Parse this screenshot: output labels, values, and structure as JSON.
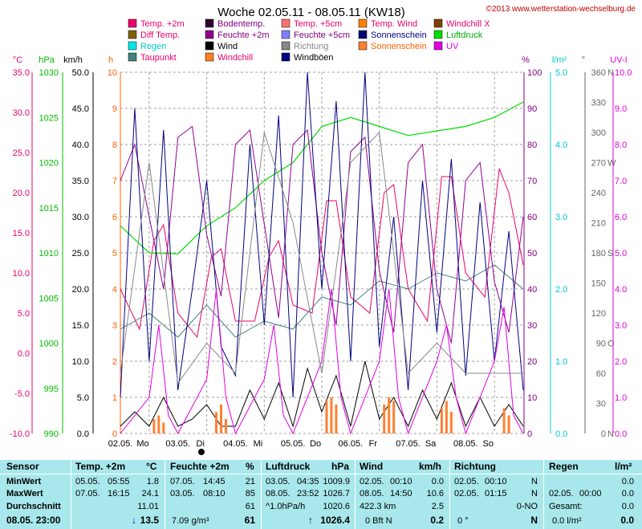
{
  "title": "Woche 02.05.11 - 08.05.11 (KW18)",
  "copyright": "©2013 www.wetterstation-wechselburg.de",
  "colors": {
    "temp2m": "#e8006a",
    "diff": "#806000",
    "regen": "#00e8e8",
    "taupunkt": "#408080",
    "boden": "#300030",
    "feuchte2m": "#900090",
    "wind": "#000000",
    "windchill": "#ff8020",
    "temp5cm": "#ff7070",
    "feuchte5cm": "#8080ff",
    "richtung": "#888888",
    "windboeen": "#000080",
    "tempwind": "#ff8000",
    "sonnenschein": "#000070",
    "sonnenschein_bar": "#ff8030",
    "windchillx": "#804000",
    "luftdruck": "#00dd00",
    "uv": "#e000e0",
    "grid": "#a0a0a0"
  },
  "legend": [
    {
      "label": "Temp. +2m",
      "color": "#e8006a",
      "text_color": "#e8006a"
    },
    {
      "label": "Bodentemp.",
      "color": "#300030",
      "text_color": "#800080"
    },
    {
      "label": "Temp. +5cm",
      "color": "#ff7070",
      "text_color": "#e8006a"
    },
    {
      "label": "Temp. Wind",
      "color": "#ff8000",
      "text_color": "#e8006a"
    },
    {
      "label": "Windchill X",
      "color": "#804000",
      "text_color": "#e8006a"
    },
    {
      "label": "Diff Temp.",
      "color": "#806000",
      "text_color": "#e8006a"
    },
    {
      "label": "Feuchte +2m",
      "color": "#900090",
      "text_color": "#800080"
    },
    {
      "label": "Feuchte +5cm",
      "color": "#8080ff",
      "text_color": "#800080"
    },
    {
      "label": "Sonnenschein",
      "color": "#000070",
      "text_color": "#000080"
    },
    {
      "label": "Luftdruck",
      "color": "#00dd00",
      "text_color": "#00aa00"
    },
    {
      "label": "Regen",
      "color": "#00e8e8",
      "text_color": "#00c8c8"
    },
    {
      "label": "Wind",
      "color": "#000000",
      "text_color": "#000000"
    },
    {
      "label": "Richtung",
      "color": "#888888",
      "text_color": "#888888"
    },
    {
      "label": "Sonnenschein",
      "color": "#ff8030",
      "text_color": "#ff6000"
    },
    {
      "label": "UV",
      "color": "#e000e0",
      "text_color": "#e000e0"
    },
    {
      "label": "Taupunkt",
      "color": "#408080",
      "text_color": "#e8006a"
    },
    {
      "label": "Windchill",
      "color": "#ff8020",
      "text_color": "#e8006a"
    },
    {
      "label": "Windböen",
      "color": "#000080",
      "text_color": "#000000"
    }
  ],
  "chart_data": {
    "type": "line",
    "title": "Woche 02.05.11 - 08.05.11 (KW18)",
    "x_ticks": [
      "02.05.",
      "03.05.",
      "04.05.",
      "05.05.",
      "06.05.",
      "07.05.",
      "08.05."
    ],
    "x_tick_days": [
      "Mo",
      "Di",
      "Mi",
      "Do",
      "Fr",
      "Sa",
      "So"
    ],
    "x_range_hours": [
      0,
      168
    ],
    "axes": [
      {
        "unit": "°C",
        "ticks": [
          "35.0",
          "30.0",
          "25.0",
          "20.0",
          "15.0",
          "10.0",
          "5.0",
          "0.0",
          "-5.0",
          "-10.0"
        ],
        "range": [
          -10,
          35
        ],
        "color": "#e8006a"
      },
      {
        "unit": "hPa",
        "ticks": [
          "1030",
          "1025",
          "1020",
          "1015",
          "1010",
          "1005",
          "1000",
          "995",
          "990"
        ],
        "range": [
          990,
          1030
        ],
        "color": "#00bb00"
      },
      {
        "unit": "km/h",
        "ticks": [
          "50.0",
          "45.0",
          "40.0",
          "35.0",
          "30.0",
          "25.0",
          "20.0",
          "15.0",
          "10.0",
          "5.0",
          "0.0"
        ],
        "range": [
          0,
          50
        ],
        "color": "#000000"
      },
      {
        "unit": "h",
        "ticks": [
          "10",
          "9",
          "8",
          "7",
          "6",
          "5",
          "4",
          "3",
          "2",
          "1",
          "0"
        ],
        "range": [
          0,
          10
        ],
        "color": "#ff6000"
      },
      {
        "unit": "%",
        "ticks": [
          "100",
          "90",
          "80",
          "70",
          "60",
          "50",
          "40",
          "30",
          "20",
          "10",
          "0"
        ],
        "range": [
          0,
          100
        ],
        "color": "#800080"
      },
      {
        "unit": "l/m²",
        "ticks": [
          "5.0",
          "4.0",
          "3.0",
          "2.0",
          "1.0",
          "0.0"
        ],
        "range": [
          0,
          5
        ],
        "color": "#00c8c8"
      },
      {
        "unit": "°",
        "ticks": [
          "360",
          "330",
          "300",
          "270",
          "240",
          "210",
          "180",
          "150",
          "120",
          "90",
          "60",
          "30",
          "0"
        ],
        "compass": [
          "N",
          "",
          "",
          "W",
          "",
          "",
          "S",
          "",
          "",
          "O",
          "",
          "",
          "N"
        ],
        "range": [
          0,
          360
        ],
        "color": "#666666"
      },
      {
        "unit": "UV-I",
        "ticks": [
          "10.0",
          "9.0",
          "8.0",
          "7.0",
          "6.0",
          "5.0",
          "4.0",
          "3.0",
          "2.0",
          "1.0",
          "0.0"
        ],
        "range": [
          0,
          10
        ],
        "color": "#e000e0"
      }
    ],
    "series": [
      {
        "name": "Temp. +2m",
        "axis": "°C",
        "x": [
          0,
          8,
          14,
          18,
          24,
          32,
          38,
          42,
          48,
          56,
          62,
          66,
          72,
          80,
          86,
          90,
          96,
          104,
          110,
          114,
          120,
          128,
          134,
          138,
          144,
          152,
          158,
          162,
          168
        ],
        "y": [
          8,
          3,
          14,
          16,
          5,
          2,
          12,
          13,
          4,
          4,
          12,
          14,
          6,
          5,
          19,
          19,
          7,
          5,
          20,
          21,
          8,
          4,
          22,
          22,
          10,
          7,
          23,
          20,
          11
        ]
      },
      {
        "name": "Taupunkt",
        "axis": "°C",
        "x": [
          0,
          12,
          24,
          36,
          48,
          60,
          72,
          84,
          96,
          108,
          120,
          132,
          144,
          156,
          168
        ],
        "y": [
          3,
          5,
          2,
          6,
          2,
          4,
          3,
          7,
          6,
          9,
          8,
          10,
          9,
          11,
          8
        ]
      },
      {
        "name": "Luftdruck",
        "axis": "hPa",
        "x": [
          0,
          12,
          24,
          36,
          48,
          60,
          72,
          84,
          96,
          108,
          120,
          132,
          144,
          156,
          168
        ],
        "y": [
          1013,
          1010,
          1009.9,
          1013,
          1015,
          1018,
          1020,
          1024,
          1025,
          1024,
          1023,
          1023.5,
          1024,
          1025,
          1026.7
        ]
      },
      {
        "name": "Feuchte +2m",
        "axis": "%",
        "x": [
          0,
          6,
          12,
          18,
          24,
          30,
          36,
          42,
          48,
          54,
          60,
          66,
          72,
          78,
          84,
          90,
          96,
          102,
          108,
          114,
          120,
          126,
          132,
          138,
          144,
          150,
          156,
          162,
          168
        ],
        "y": [
          70,
          80,
          60,
          40,
          82,
          85,
          55,
          38,
          80,
          84,
          58,
          32,
          80,
          84,
          50,
          30,
          78,
          82,
          45,
          28,
          75,
          80,
          40,
          25,
          70,
          75,
          42,
          28,
          60
        ]
      },
      {
        "name": "Windböen",
        "axis": "km/h",
        "x": [
          0,
          6,
          12,
          18,
          24,
          30,
          36,
          42,
          48,
          54,
          60,
          66,
          72,
          78,
          84,
          90,
          96,
          102,
          108,
          114,
          120,
          126,
          132,
          138,
          144,
          150,
          156,
          162,
          168
        ],
        "y": [
          5,
          45,
          10,
          42,
          6,
          20,
          35,
          12,
          8,
          40,
          15,
          44,
          5,
          50,
          20,
          46,
          10,
          50,
          12,
          30,
          6,
          35,
          14,
          38,
          8,
          32,
          10,
          28,
          6
        ]
      },
      {
        "name": "Wind",
        "axis": "km/h",
        "x": [
          0,
          6,
          12,
          18,
          24,
          30,
          36,
          42,
          48,
          54,
          60,
          66,
          72,
          78,
          84,
          90,
          96,
          102,
          108,
          114,
          120,
          126,
          132,
          138,
          144,
          150,
          156,
          162,
          168
        ],
        "y": [
          1,
          3,
          1,
          5,
          1,
          2,
          4,
          1,
          1,
          6,
          2,
          7,
          1,
          9,
          3,
          8,
          1,
          10,
          2,
          5,
          1,
          6,
          2,
          7,
          1,
          5,
          1,
          4,
          1
        ]
      },
      {
        "name": "Sonnenschein",
        "axis": "h",
        "x": [
          14,
          16,
          18,
          40,
          42,
          44,
          86,
          88,
          90,
          110,
          112,
          114,
          134,
          136,
          138,
          160,
          162
        ],
        "y": [
          0.4,
          0.5,
          0.3,
          0.6,
          0.8,
          0.4,
          0.9,
          1.0,
          0.8,
          0.8,
          1.0,
          0.9,
          0.7,
          0.9,
          0.6,
          0.7,
          0.5
        ]
      },
      {
        "name": "UV",
        "axis": "UV-I",
        "x": [
          0,
          12,
          16,
          20,
          24,
          36,
          40,
          44,
          48,
          60,
          64,
          68,
          72,
          84,
          88,
          92,
          96,
          108,
          112,
          116,
          120,
          132,
          136,
          140,
          144,
          156,
          160,
          164,
          168
        ],
        "y": [
          0,
          1,
          3,
          0.5,
          0,
          1.5,
          4,
          1,
          0,
          1.5,
          3,
          0.5,
          0,
          2,
          4,
          1,
          0,
          2,
          4,
          1,
          0,
          2,
          3,
          1,
          0,
          2,
          3.5,
          0.5,
          0
        ]
      },
      {
        "name": "Richtung",
        "axis": "°",
        "x": [
          0,
          12,
          24,
          36,
          48,
          60,
          72,
          84,
          96,
          108,
          120,
          132,
          144,
          156,
          168
        ],
        "y": [
          60,
          270,
          50,
          90,
          60,
          300,
          210,
          60,
          270,
          300,
          60,
          90,
          60,
          60,
          60
        ]
      }
    ]
  },
  "stats": {
    "row_labels": [
      "Sensor",
      "MinWert",
      "MaxWert",
      "Durchschnitt",
      "08.05. 23:00"
    ],
    "temp": {
      "header": "Temp. +2m",
      "unit": "°C",
      "rows": [
        [
          "05.05.",
          "05:55",
          "1.8"
        ],
        [
          "07.05.",
          "16:15",
          "24.1"
        ],
        [
          "",
          "",
          "11.01"
        ]
      ],
      "current": "13.5",
      "arrow": "↓"
    },
    "feuchte": {
      "header": "Feuchte +2m",
      "unit": "%",
      "rows": [
        [
          "07.05.",
          "14:45",
          "21"
        ],
        [
          "03.05.",
          "08:10",
          "85"
        ],
        [
          "",
          "",
          "61"
        ]
      ],
      "current_extra": "7.09 g/m³",
      "current": "61"
    },
    "luftdruck": {
      "header": "Luftdruck",
      "unit": "hPa",
      "rows": [
        [
          "03.05.",
          "04:35",
          "1009.9"
        ],
        [
          "08.05.",
          "23:52",
          "1026.7"
        ],
        [
          "^1.0hPa/h",
          "",
          "1020.6"
        ]
      ],
      "current": "1026.4",
      "arrow": "↑"
    },
    "wind": {
      "header": "Wind",
      "unit": "km/h",
      "rows": [
        [
          "02.05.",
          "00:10",
          "0.0"
        ],
        [
          "08.05.",
          "14:50",
          "10.6"
        ],
        [
          "422.3 km",
          "",
          "2.5"
        ]
      ],
      "current_extra": "0 Bft N",
      "current": "0.2"
    },
    "richtung": {
      "header": "Richtung",
      "rows": [
        [
          "02.05.",
          "00:10",
          "N"
        ],
        [
          "02.05.",
          "01:15",
          "N"
        ],
        [
          "",
          "",
          "0-NO"
        ]
      ],
      "current_extra": "0 °",
      "current": "N"
    },
    "regen": {
      "header": "Regen",
      "unit": "l/m²",
      "rows": [
        [
          "",
          "",
          "0.0"
        ],
        [
          "02.05.",
          "00:00",
          "0.0"
        ],
        [
          "Gesamt:",
          "",
          "0.0"
        ]
      ],
      "current_extra": "0.0 l/m²",
      "current": "0.0"
    }
  }
}
